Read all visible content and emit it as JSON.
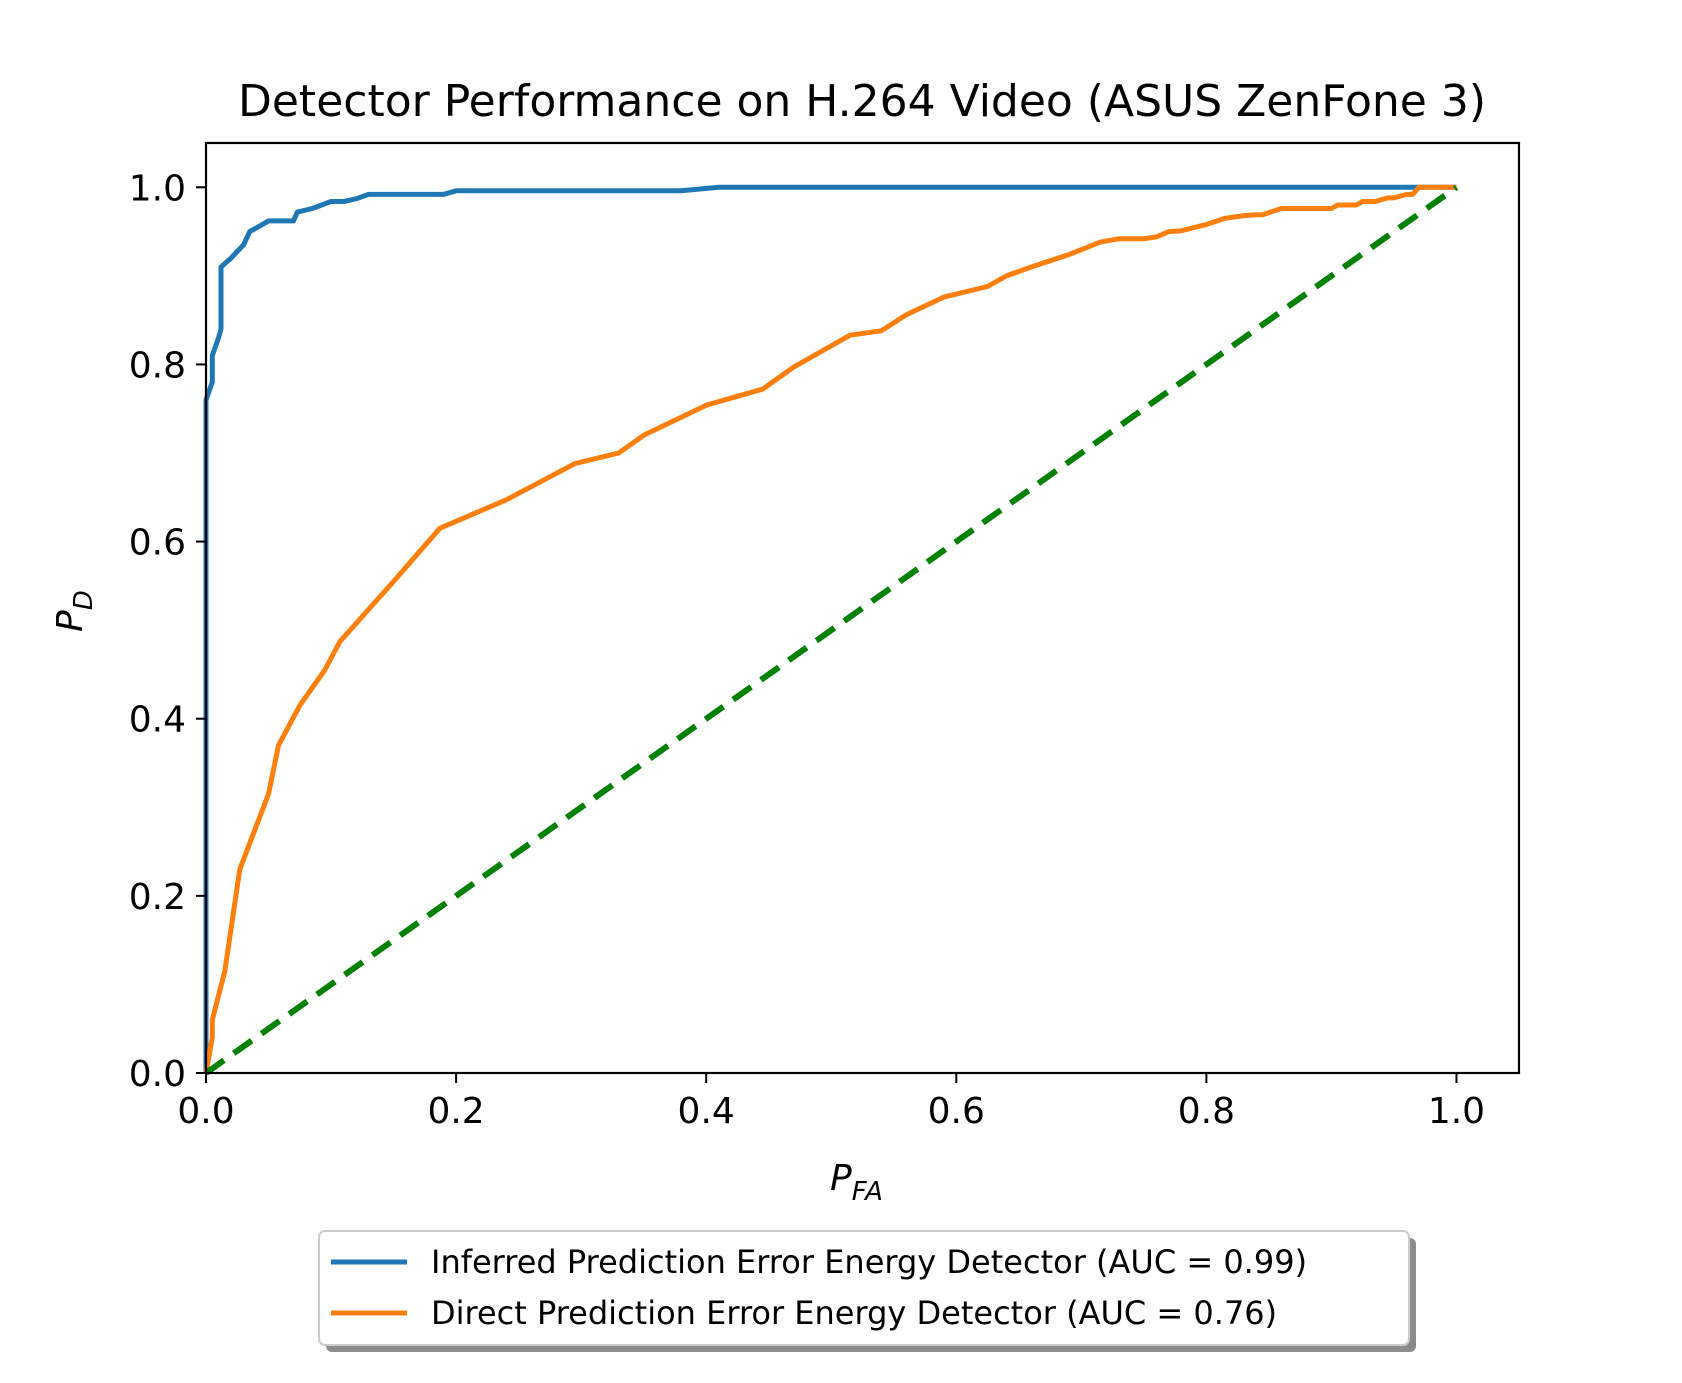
{
  "chart_data": {
    "type": "line",
    "title": "Detector Performance on H.264 Video (ASUS ZenFone 3)",
    "xlabel": {
      "main": "P",
      "sub": "FA"
    },
    "ylabel": {
      "main": "P",
      "sub": "D"
    },
    "xlim": [
      0.0,
      1.05
    ],
    "ylim": [
      0.0,
      1.05
    ],
    "xticks": [
      "0.0",
      "0.2",
      "0.4",
      "0.6",
      "0.8",
      "1.0"
    ],
    "yticks": [
      "0.0",
      "0.2",
      "0.4",
      "0.6",
      "0.8",
      "1.0"
    ],
    "grid": false,
    "legend_position": "below-center",
    "series": [
      {
        "name": "Inferred Prediction Error Energy Detector (AUC = 0.99)",
        "color": "#1f77b4",
        "style": "solid",
        "x": [
          0,
          0,
          0.005,
          0.005,
          0.01,
          0.012,
          0.012,
          0.02,
          0.03,
          0.035,
          0.05,
          0.07,
          0.073,
          0.085,
          0.1,
          0.11,
          0.12,
          0.13,
          0.19,
          0.2,
          0.38,
          0.41,
          1.0
        ],
        "y": [
          0,
          0.76,
          0.78,
          0.81,
          0.83,
          0.84,
          0.91,
          0.92,
          0.935,
          0.95,
          0.962,
          0.962,
          0.972,
          0.976,
          0.984,
          0.984,
          0.987,
          0.992,
          0.992,
          0.996,
          0.996,
          1.0,
          1.0
        ]
      },
      {
        "name": "Direct Prediction Error Energy Detector (AUC = 0.76)",
        "color": "#ff7f0e",
        "style": "solid",
        "x": [
          0,
          0.005,
          0.005,
          0.015,
          0.027,
          0.05,
          0.058,
          0.075,
          0.095,
          0.107,
          0.15,
          0.187,
          0.24,
          0.295,
          0.33,
          0.35,
          0.4,
          0.445,
          0.47,
          0.515,
          0.54,
          0.56,
          0.59,
          0.625,
          0.64,
          0.66,
          0.69,
          0.715,
          0.73,
          0.75,
          0.76,
          0.77,
          0.78,
          0.8,
          0.815,
          0.83,
          0.84,
          0.845,
          0.86,
          0.9,
          0.905,
          0.92,
          0.925,
          0.935,
          0.945,
          0.95,
          0.96,
          0.965,
          0.97,
          1.0
        ],
        "y": [
          0,
          0.04,
          0.06,
          0.115,
          0.23,
          0.315,
          0.37,
          0.415,
          0.455,
          0.487,
          0.555,
          0.615,
          0.647,
          0.688,
          0.7,
          0.72,
          0.754,
          0.772,
          0.797,
          0.833,
          0.838,
          0.856,
          0.876,
          0.888,
          0.9,
          0.91,
          0.924,
          0.938,
          0.942,
          0.942,
          0.944,
          0.95,
          0.951,
          0.958,
          0.965,
          0.968,
          0.969,
          0.969,
          0.976,
          0.976,
          0.98,
          0.98,
          0.984,
          0.984,
          0.988,
          0.988,
          0.992,
          0.992,
          1.0,
          1.0
        ]
      },
      {
        "color": "#008000",
        "style": "dashed",
        "x": [
          0,
          1.0
        ],
        "y": [
          0,
          1.0
        ]
      }
    ]
  }
}
